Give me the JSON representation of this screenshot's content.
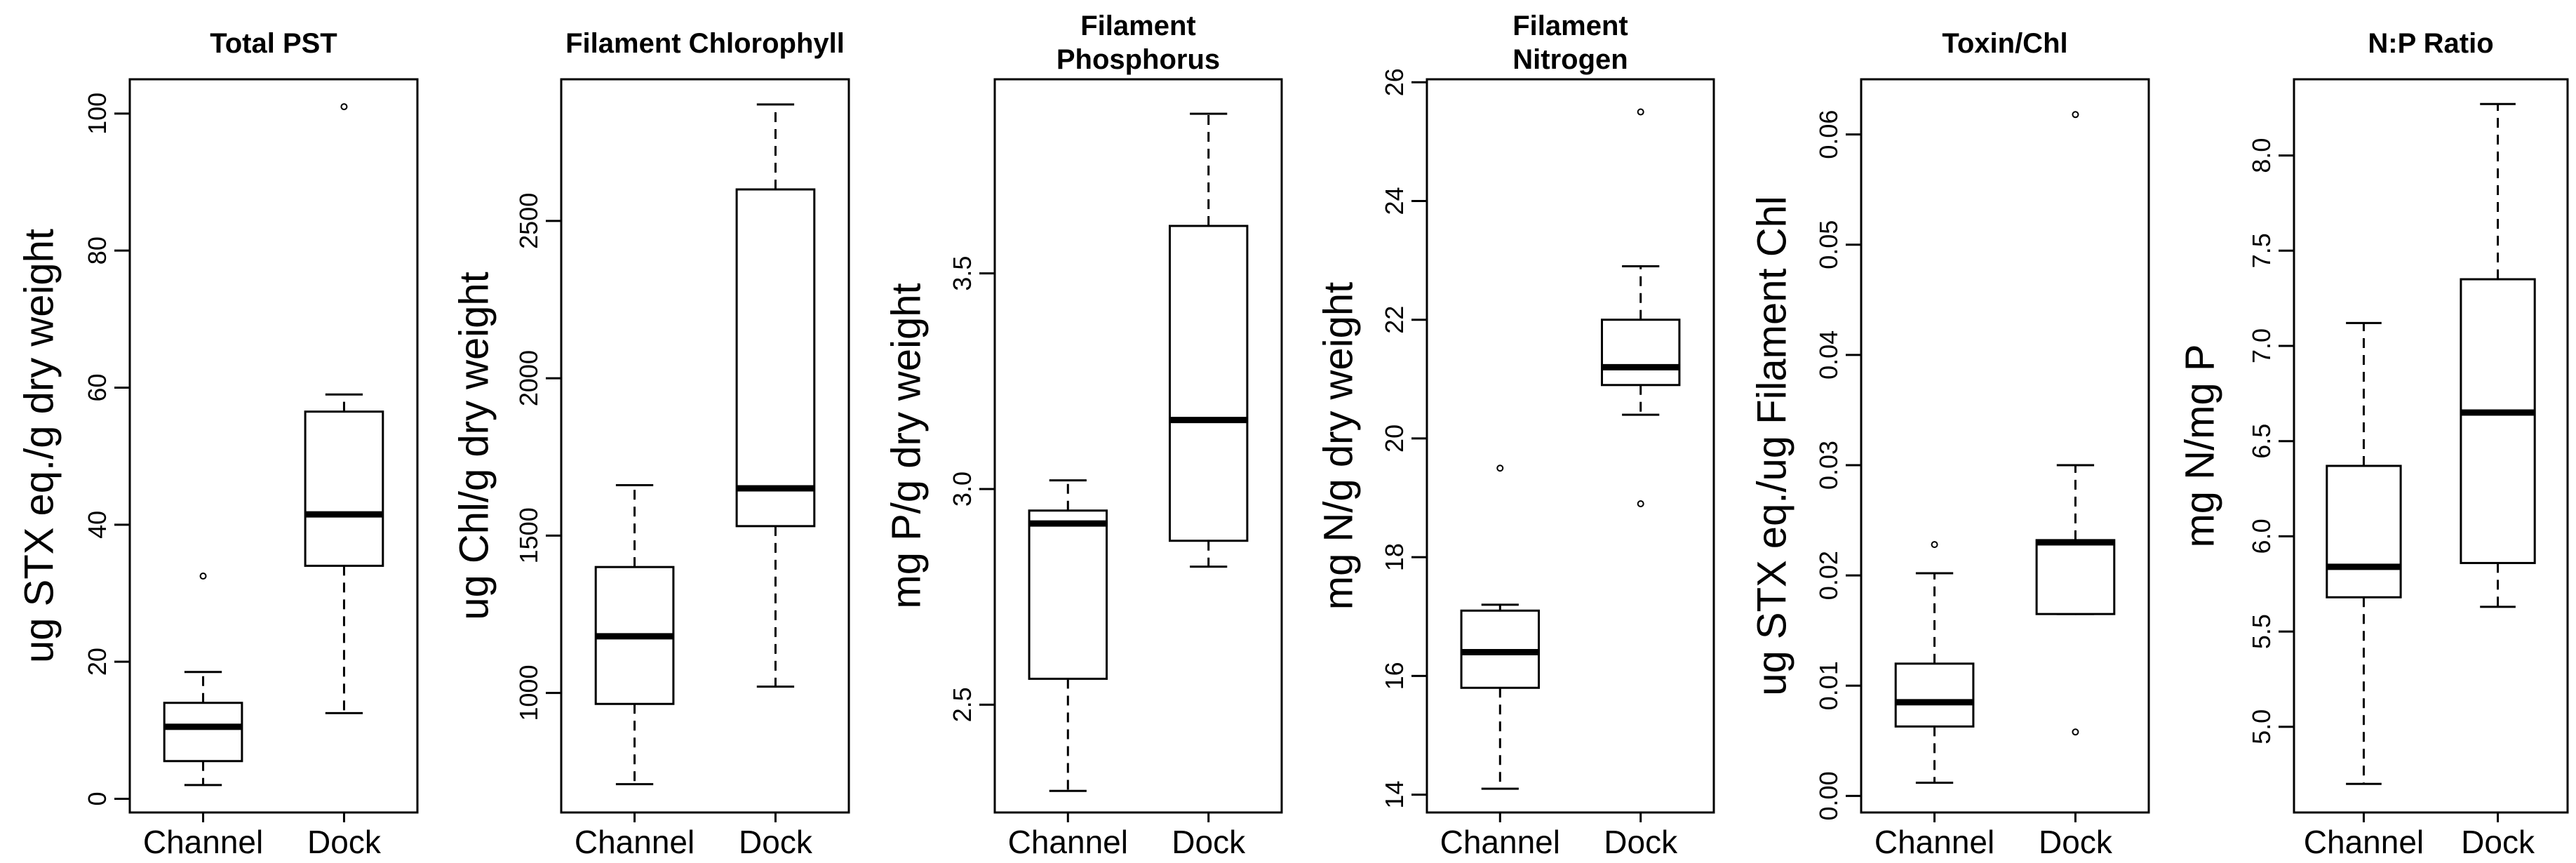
{
  "chart_data": [
    {
      "type": "box",
      "title": "Total PST",
      "ylabel": "ug STX eq./g dry weight",
      "categories": [
        "Channel",
        "Dock"
      ],
      "ylim": [
        -2,
        105
      ],
      "yticks": [
        0,
        20,
        40,
        60,
        80,
        100
      ],
      "series": [
        {
          "whisker_low": 2,
          "q1": 5.5,
          "median": 10.5,
          "q3": 14,
          "whisker_high": 18.5,
          "outliers": [
            32.5
          ]
        },
        {
          "whisker_low": 12.5,
          "q1": 34,
          "median": 41.5,
          "q3": 56.5,
          "whisker_high": 59,
          "outliers": [
            101
          ]
        }
      ]
    },
    {
      "type": "box",
      "title": "Filament Chlorophyll",
      "ylabel": "ug Chl/g dry weight",
      "categories": [
        "Channel",
        "Dock"
      ],
      "ylim": [
        620,
        2950
      ],
      "yticks": [
        1000,
        1500,
        2000,
        2500
      ],
      "series": [
        {
          "whisker_low": 710,
          "q1": 965,
          "median": 1180,
          "q3": 1400,
          "whisker_high": 1660,
          "outliers": []
        },
        {
          "whisker_low": 1020,
          "q1": 1530,
          "median": 1650,
          "q3": 2600,
          "whisker_high": 2870,
          "outliers": []
        }
      ]
    },
    {
      "type": "box",
      "title": "Filament\nPhosphorus",
      "ylabel": "mg P/g dry weight",
      "categories": [
        "Channel",
        "Dock"
      ],
      "ylim": [
        2.25,
        3.95
      ],
      "yticks": [
        2.5,
        3.0,
        3.5
      ],
      "yticklabels": [
        "2.5",
        "3.0",
        "3.5"
      ],
      "series": [
        {
          "whisker_low": 2.3,
          "q1": 2.56,
          "median": 2.92,
          "q3": 2.95,
          "whisker_high": 3.02,
          "outliers": []
        },
        {
          "whisker_low": 2.82,
          "q1": 2.88,
          "median": 3.16,
          "q3": 3.61,
          "whisker_high": 3.87,
          "outliers": []
        }
      ]
    },
    {
      "type": "box",
      "title": "Filament\nNitrogen",
      "ylabel": "mg N/g dry weight",
      "categories": [
        "Channel",
        "Dock"
      ],
      "ylim": [
        13.7,
        26.05
      ],
      "yticks": [
        14,
        16,
        18,
        20,
        22,
        24,
        26
      ],
      "series": [
        {
          "whisker_low": 14.1,
          "q1": 15.8,
          "median": 16.4,
          "q3": 17.1,
          "whisker_high": 17.2,
          "outliers": [
            19.5
          ]
        },
        {
          "whisker_low": 20.4,
          "q1": 20.9,
          "median": 21.2,
          "q3": 22.0,
          "whisker_high": 22.9,
          "outliers": [
            18.9,
            25.5
          ]
        }
      ]
    },
    {
      "type": "box",
      "title": "Toxin/Chl",
      "ylabel": "ug STX eq./ug Filament Chl",
      "categories": [
        "Channel",
        "Dock"
      ],
      "ylim": [
        -0.0015,
        0.065
      ],
      "yticks": [
        0.0,
        0.01,
        0.02,
        0.03,
        0.04,
        0.05,
        0.06
      ],
      "yticklabels": [
        "0.00",
        "0.01",
        "0.02",
        "0.03",
        "0.04",
        "0.05",
        "0.06"
      ],
      "series": [
        {
          "whisker_low": 0.0012,
          "q1": 0.0063,
          "median": 0.0085,
          "q3": 0.012,
          "whisker_high": 0.0202,
          "outliers": [
            0.0228
          ]
        },
        {
          "whisker_low": 0.0165,
          "q1": 0.0165,
          "median": 0.023,
          "q3": 0.0232,
          "whisker_high": 0.03,
          "outliers": [
            0.0058,
            0.0618
          ]
        }
      ]
    },
    {
      "type": "box",
      "title": "N:P Ratio",
      "ylabel": "mg N/mg P",
      "categories": [
        "Channel",
        "Dock"
      ],
      "ylim": [
        4.55,
        8.4
      ],
      "yticks": [
        5.0,
        5.5,
        6.0,
        6.5,
        7.0,
        7.5,
        8.0
      ],
      "yticklabels": [
        "5.0",
        "5.5",
        "6.0",
        "6.5",
        "7.0",
        "7.5",
        "8.0"
      ],
      "series": [
        {
          "whisker_low": 4.7,
          "q1": 5.68,
          "median": 5.84,
          "q3": 6.37,
          "whisker_high": 7.12,
          "outliers": []
        },
        {
          "whisker_low": 5.63,
          "q1": 5.86,
          "median": 6.65,
          "q3": 7.35,
          "whisker_high": 8.27,
          "outliers": []
        }
      ]
    }
  ]
}
